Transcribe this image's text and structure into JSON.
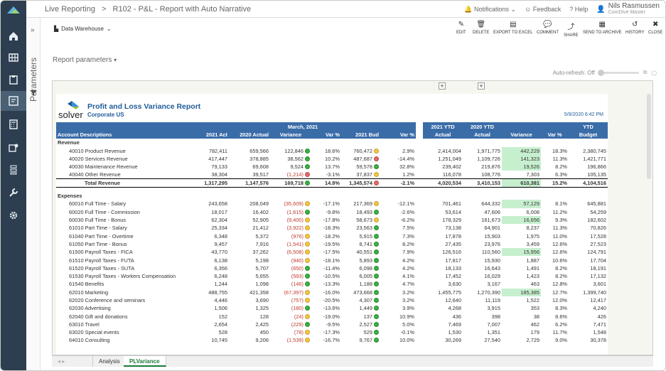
{
  "app": {
    "breadcrumb_root": "Live Reporting",
    "breadcrumb_sep": ">",
    "breadcrumb_page": "R102 - P&L - Report with Auto Narrative"
  },
  "topbar": {
    "notifications": "Notifications",
    "feedback": "Feedback",
    "help": "Help",
    "user_name": "Nils Rasmussen",
    "user_org": "ComDive Master"
  },
  "sidebar": {
    "params_label": "Parameters",
    "expand": "»"
  },
  "toolbar": {
    "source": "Data Warehouse",
    "edit": "EDIT",
    "delete": "DELETE",
    "export": "EXPORT TO EXCEL",
    "comment": "COMMENT",
    "share": "SHARE",
    "archive": "SEND TO ARCHIVE",
    "history": "HISTORY",
    "close": "CLOSE"
  },
  "params": {
    "label": "Report parameters",
    "autorefresh": "Auto-refresh: Off"
  },
  "report": {
    "title": "Profit and Loss Variance Report",
    "subtitle": "Corporate US",
    "date": "5/9/2020 6:42 PM",
    "brand": "solver",
    "period_header": "March, 2021",
    "col_account": "Account Descriptions",
    "cols_left": [
      "2021 Act",
      "2020 Actual",
      "Variance",
      "Var %",
      "2021 Bud",
      "Var %"
    ],
    "cols_right_top": [
      "2021 YTD",
      "2020 YTD",
      "",
      "",
      "YTD"
    ],
    "cols_right": [
      "Actual",
      "Actual",
      "Variance",
      "Var %",
      "Budget"
    ],
    "revenue_label": "Revenue",
    "expenses_label": "Expenses",
    "total_revenue_label": "Total Revenue",
    "revenue_rows": [
      {
        "acct": "40010 Product Revenue",
        "act": "782,411",
        "py": "659,566",
        "var": "122,846",
        "vd": "g",
        "vp": "18.6%",
        "bud": "760,472",
        "bd": "y",
        "bp": "2.9%",
        "ytd": "2,414,004",
        "pytd": "1,971,775",
        "yvar": "442,229",
        "yhl": true,
        "yvp": "18.3%",
        "ybud": "2,380,745"
      },
      {
        "acct": "40020 Services Revenue",
        "act": "417,447",
        "py": "378,885",
        "var": "38,562",
        "vd": "g",
        "vp": "10.2%",
        "bud": "487,687",
        "bd": "r",
        "bp": "-14.4%",
        "ytd": "1,251,049",
        "pytd": "1,109,726",
        "yvar": "141,323",
        "yhl": true,
        "yvp": "11.3%",
        "ybud": "1,421,771"
      },
      {
        "acct": "40030 Maintenance Revenue",
        "act": "79,133",
        "py": "69,608",
        "var": "9,524",
        "vd": "g",
        "vp": "13.7%",
        "bud": "59,578",
        "bd": "g",
        "bp": "32.8%",
        "ytd": "239,402",
        "pytd": "219,876",
        "yvar": "19,526",
        "yhl": true,
        "yvp": "8.2%",
        "ybud": "196,866"
      },
      {
        "acct": "40040 Other Revenue",
        "act": "38,304",
        "py": "39,517",
        "var": "(1,214)",
        "vneg": true,
        "vd": "r",
        "vp": "-3.1%",
        "bud": "37,837",
        "bd": "y",
        "bp": "1.2%",
        "ytd": "116,078",
        "pytd": "108,776",
        "yvar": "7,303",
        "yvp": "6.3%",
        "ybud": "105,135"
      }
    ],
    "total_revenue": {
      "act": "1,317,295",
      "py": "1,147,576",
      "var": "169,718",
      "vd": "g",
      "vp": "14.8%",
      "bud": "1,345,574",
      "bd": "r",
      "bp": "-2.1%",
      "ytd": "4,020,534",
      "pytd": "3,410,153",
      "yvar": "610,381",
      "yhl": true,
      "yvp": "15.2%",
      "ybud": "4,104,516"
    },
    "expense_rows": [
      {
        "acct": "60010 Full Time - Salary",
        "act": "243,658",
        "py": "208,049",
        "var": "(35,609)",
        "vneg": true,
        "vd": "y",
        "vp": "-17.1%",
        "bud": "217,369",
        "bd": "y",
        "bp": "-12.1%",
        "ytd": "701,461",
        "pytd": "644,332",
        "yvar": "57,129",
        "yhl": true,
        "yvp": "8.1%",
        "ybud": "645,881"
      },
      {
        "acct": "60020 Full Time - Commission",
        "act": "18,017",
        "py": "16,402",
        "var": "(1,615)",
        "vneg": true,
        "vd": "g",
        "vp": "-9.8%",
        "bud": "18,493",
        "bd": "g",
        "bp": "-2.6%",
        "ytd": "53,614",
        "pytd": "47,606",
        "yvar": "6,008",
        "yvp": "11.2%",
        "ybud": "54,259"
      },
      {
        "acct": "60030 Full Time - Bonus",
        "act": "62,304",
        "py": "52,905",
        "var": "(9,400)",
        "vneg": true,
        "vd": "y",
        "vp": "-17.8%",
        "bud": "58,673",
        "bd": "y",
        "bp": "-6.2%",
        "ytd": "178,329",
        "pytd": "161,673",
        "yvar": "16,656",
        "yhl": true,
        "yvp": "9.3%",
        "ybud": "182,602"
      },
      {
        "acct": "61010 Part Time - Salary",
        "act": "25,334",
        "py": "21,412",
        "var": "(3,922)",
        "vneg": true,
        "vd": "y",
        "vp": "-18.3%",
        "bud": "23,563",
        "bd": "g",
        "bp": "7.5%",
        "ytd": "73,138",
        "pytd": "64,901",
        "yvar": "8,237",
        "yvp": "11.3%",
        "ybud": "70,826"
      },
      {
        "acct": "61040 Part Time - Overtime",
        "act": "6,348",
        "py": "5,372",
        "var": "(976)",
        "vneg": true,
        "vd": "y",
        "vp": "-18.2%",
        "bud": "5,915",
        "bd": "g",
        "bp": "7.3%",
        "ytd": "17,878",
        "pytd": "15,903",
        "yvar": "1,975",
        "yvp": "11.0%",
        "ybud": "17,528"
      },
      {
        "acct": "61050 Part Time - Bonus",
        "act": "9,457",
        "py": "7,916",
        "var": "(1,541)",
        "vneg": true,
        "vd": "y",
        "vp": "-19.5%",
        "bud": "8,741",
        "bd": "g",
        "bp": "8.2%",
        "ytd": "27,435",
        "pytd": "23,976",
        "yvar": "3,459",
        "yvp": "12.6%",
        "ybud": "27,523"
      },
      {
        "acct": "61500 Payroll Taxes - FICA",
        "act": "43,770",
        "py": "37,262",
        "var": "(6,508)",
        "vneg": true,
        "vd": "y",
        "vp": "-17.5%",
        "bud": "40,551",
        "bd": "g",
        "bp": "7.9%",
        "ytd": "126,516",
        "pytd": "110,560",
        "yvar": "15,956",
        "yhl": true,
        "yvp": "12.6%",
        "ybud": "124,791"
      },
      {
        "acct": "61510 Payroll Taxes - FUTA",
        "act": "6,138",
        "py": "5,198",
        "var": "(940)",
        "vneg": true,
        "vd": "y",
        "vp": "-18.1%",
        "bud": "5,893",
        "bd": "g",
        "bp": "4.2%",
        "ytd": "17,817",
        "pytd": "15,930",
        "yvar": "1,887",
        "yvp": "10.6%",
        "ybud": "17,704"
      },
      {
        "acct": "61520 Payroll Taxes - SUTA",
        "act": "6,356",
        "py": "5,707",
        "var": "(650)",
        "vneg": true,
        "vd": "g",
        "vp": "-11.4%",
        "bud": "6,098",
        "bd": "g",
        "bp": "4.2%",
        "ytd": "18,133",
        "pytd": "16,643",
        "yvar": "1,491",
        "yvp": "8.2%",
        "ybud": "18,191"
      },
      {
        "acct": "61530 Payroll Taxes - Workers Compensation",
        "act": "6,248",
        "py": "5,655",
        "var": "(593)",
        "vneg": true,
        "vd": "g",
        "vp": "-10.5%",
        "bud": "6,005",
        "bd": "g",
        "bp": "4.1%",
        "ytd": "17,452",
        "pytd": "16,029",
        "yvar": "1,423",
        "yvp": "8.2%",
        "ybud": "17,132"
      },
      {
        "acct": "61540 Benefits",
        "act": "1,244",
        "py": "1,098",
        "var": "(146)",
        "vneg": true,
        "vd": "g",
        "vp": "-13.3%",
        "bud": "1,188",
        "bd": "g",
        "bp": "4.7%",
        "ytd": "3,630",
        "pytd": "3,167",
        "yvar": "463",
        "yvp": "12.8%",
        "ybud": "3,601"
      },
      {
        "acct": "62010 Marketing",
        "act": "488,755",
        "py": "421,358",
        "var": "(67,397)",
        "vneg": true,
        "vd": "y",
        "vp": "-16.0%",
        "bud": "473,668",
        "bd": "g",
        "bp": "3.2%",
        "ytd": "1,455,775",
        "pytd": "1,270,390",
        "yvar": "185,385",
        "yhl": true,
        "yvp": "12.7%",
        "ybud": "1,399,740"
      },
      {
        "acct": "62020 Conference and seminars",
        "act": "4,446",
        "py": "3,690",
        "var": "(757)",
        "vneg": true,
        "vd": "y",
        "vp": "-20.5%",
        "bud": "4,307",
        "bd": "g",
        "bp": "3.2%",
        "ytd": "12,640",
        "pytd": "11,119",
        "yvar": "1,522",
        "yvp": "12.0%",
        "ybud": "12,417"
      },
      {
        "acct": "62030 Advertising",
        "act": "1,506",
        "py": "1,325",
        "var": "(180)",
        "vneg": true,
        "vd": "g",
        "vp": "-13.6%",
        "bud": "1,449",
        "bd": "g",
        "bp": "3.9%",
        "ytd": "4,268",
        "pytd": "3,915",
        "yvar": "353",
        "yvp": "8.3%",
        "ybud": "4,240"
      },
      {
        "acct": "62040 Gift and donations",
        "act": "152",
        "py": "128",
        "var": "(24)",
        "vneg": true,
        "vd": "y",
        "vp": "-19.0%",
        "bud": "137",
        "bd": "g",
        "bp": "10.9%",
        "ytd": "436",
        "pytd": "398",
        "yvar": "38",
        "yvp": "8.6%",
        "ybud": "426"
      },
      {
        "acct": "63010 Travel",
        "act": "2,654",
        "py": "2,425",
        "var": "(229)",
        "vneg": true,
        "vd": "g",
        "vp": "-9.5%",
        "bud": "2,527",
        "bd": "g",
        "bp": "5.0%",
        "ytd": "7,469",
        "pytd": "7,007",
        "yvar": "462",
        "yvp": "6.2%",
        "ybud": "7,471"
      },
      {
        "acct": "63020 Special events",
        "act": "528",
        "py": "450",
        "var": "(78)",
        "vneg": true,
        "vd": "y",
        "vp": "-17.3%",
        "bud": "529",
        "bd": "g",
        "bp": "-0.1%",
        "ytd": "1,530",
        "pytd": "1,351",
        "yvar": "179",
        "yvp": "11.7%",
        "ybud": "1,548"
      },
      {
        "acct": "64010 Consulting",
        "act": "10,745",
        "py": "9,206",
        "var": "(1,539)",
        "vneg": true,
        "vd": "y",
        "vp": "-16.7%",
        "bud": "9,767",
        "bd": "g",
        "bp": "10.0%",
        "ytd": "30,269",
        "pytd": "27,540",
        "yvar": "2,729",
        "yvp": "9.0%",
        "ybud": "30,378"
      }
    ]
  },
  "sheets": {
    "nav": "◂ ▸",
    "tabs": [
      "Analysis",
      "PLVariance"
    ]
  }
}
